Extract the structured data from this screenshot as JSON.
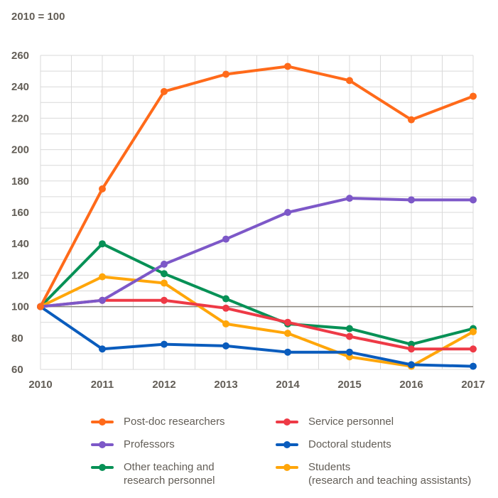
{
  "chart_data": {
    "type": "line",
    "title": "",
    "base_label": "2010 = 100",
    "xlabel": "",
    "ylabel": "",
    "x": [
      "2010",
      "2011",
      "2012",
      "2013",
      "2014",
      "2015",
      "2016",
      "2017"
    ],
    "ylim": [
      60,
      260
    ],
    "yticks": [
      "60",
      "80",
      "100",
      "120",
      "140",
      "160",
      "180",
      "200",
      "220",
      "240",
      "260"
    ],
    "reference_line": 100,
    "grid": true,
    "legend_position": "bottom",
    "series": [
      {
        "name": "Post-doc researchers",
        "color": "#ff6a1a",
        "values": [
          100,
          175,
          237,
          248,
          253,
          244,
          219,
          234
        ]
      },
      {
        "name": "Service personnel",
        "color": "#ee3a46",
        "values": [
          100,
          104,
          104,
          99,
          90,
          81,
          73,
          73
        ]
      },
      {
        "name": "Professors",
        "color": "#7d58c8",
        "values": [
          100,
          104,
          127,
          143,
          160,
          169,
          168,
          168
        ]
      },
      {
        "name": "Doctoral students",
        "color": "#0a5cbd",
        "values": [
          100,
          73,
          76,
          75,
          71,
          71,
          63,
          62
        ]
      },
      {
        "name": "Other teaching and\nresearch personnel",
        "color": "#079156",
        "values": [
          100,
          140,
          121,
          105,
          89,
          86,
          76,
          86
        ]
      },
      {
        "name": "Students\n(research and teaching assistants)",
        "color": "#ffa60a",
        "values": [
          100,
          119,
          115,
          89,
          83,
          68,
          62,
          84
        ]
      }
    ]
  }
}
